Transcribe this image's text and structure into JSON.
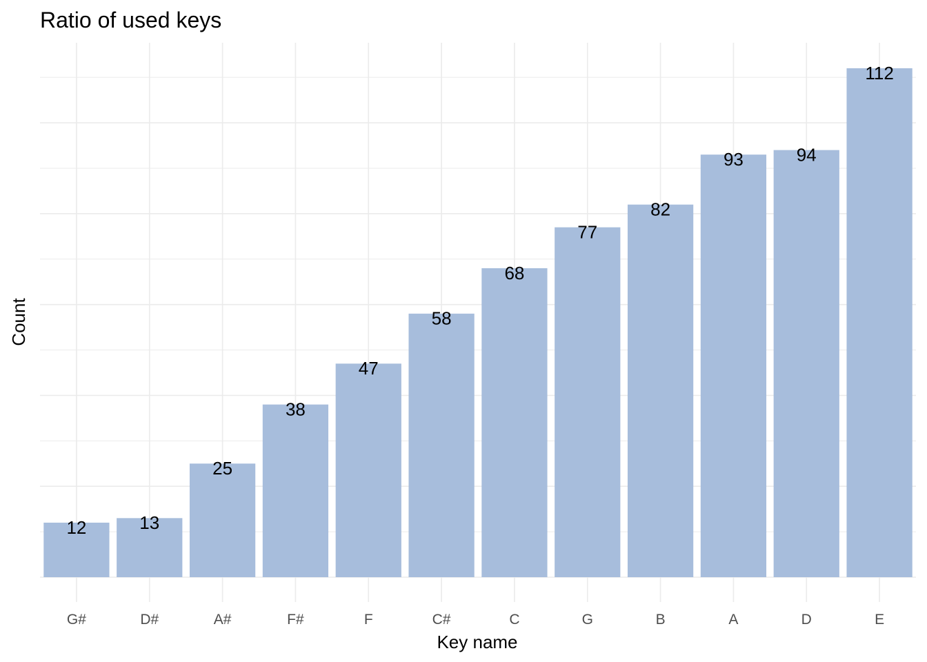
{
  "chart_data": {
    "type": "bar",
    "title": "Ratio of used keys",
    "xlabel": "Key name",
    "ylabel": "Count",
    "categories": [
      "G#",
      "D#",
      "A#",
      "F#",
      "F",
      "C#",
      "C",
      "G",
      "B",
      "A",
      "D",
      "E"
    ],
    "values": [
      12,
      13,
      25,
      38,
      47,
      58,
      68,
      77,
      82,
      93,
      94,
      112
    ],
    "ylim": [
      0,
      112
    ],
    "grid": true,
    "legend": "none",
    "bar_color": "#a7bddc",
    "gridline_color": "#ebebeb",
    "y_tick_labels_shown": false
  }
}
